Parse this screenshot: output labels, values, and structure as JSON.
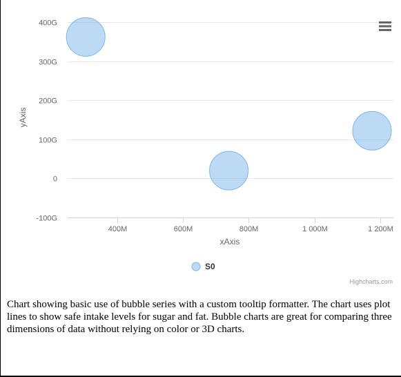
{
  "chart_data": {
    "type": "bubble",
    "title": "",
    "xlabel": "xAxis",
    "ylabel": "yAxis",
    "xlim": [
      250000000,
      1240000000
    ],
    "ylim": [
      -100000000000,
      400000000000
    ],
    "x_ticks": [
      400000000,
      600000000,
      800000000,
      1000000000,
      1200000000
    ],
    "x_tick_labels": [
      "400M",
      "600M",
      "800M",
      "1 000M",
      "1 200M"
    ],
    "y_ticks": [
      400000000000,
      300000000000,
      200000000000,
      100000000000,
      0,
      -100000000000
    ],
    "y_tick_labels": [
      "400G",
      "300G",
      "200G",
      "100G",
      "0",
      "-100G"
    ],
    "grid": true,
    "legend_position": "bottom",
    "series": [
      {
        "name": "S0",
        "color": "#7cb5ec",
        "points": [
          {
            "x": 305000000,
            "y": 362000000000,
            "z": 1
          },
          {
            "x": 740000000,
            "y": 20000000000,
            "z": 1
          },
          {
            "x": 1175000000,
            "y": 122000000000,
            "z": 1
          }
        ]
      }
    ],
    "credits": "Highcharts.com"
  },
  "menu_icon": "hamburger-icon",
  "caption": "Chart showing basic use of bubble series with a custom tooltip formatter. The chart uses plot lines to show safe intake levels for sugar and fat. Bubble charts are great for comparing three dimensions of data without relying on color or 3D charts."
}
